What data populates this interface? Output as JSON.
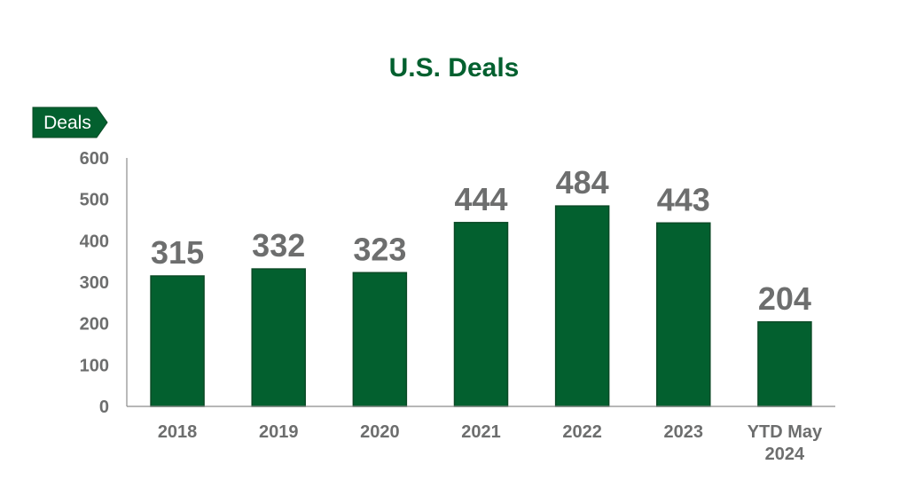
{
  "chart_data": {
    "type": "bar",
    "title": "U.S. Deals",
    "ylabel": "Deals",
    "xlabel": "",
    "categories": [
      "2018",
      "2019",
      "2020",
      "2021",
      "2022",
      "2023",
      "YTD May 2024"
    ],
    "values": [
      315,
      332,
      323,
      444,
      484,
      443,
      204
    ],
    "ylim": [
      0,
      600
    ],
    "yticks": [
      "0",
      "100",
      "200",
      "300",
      "400",
      "500",
      "600"
    ],
    "grid": false,
    "data_labels": true,
    "legend": "none",
    "colors": {
      "bar": "#03602f",
      "bar_edge": "#0b4a26",
      "title": "#03602f",
      "tick_text": "#6d6e6e",
      "axis": "#8c8c8c",
      "tag": "#03602f"
    }
  }
}
